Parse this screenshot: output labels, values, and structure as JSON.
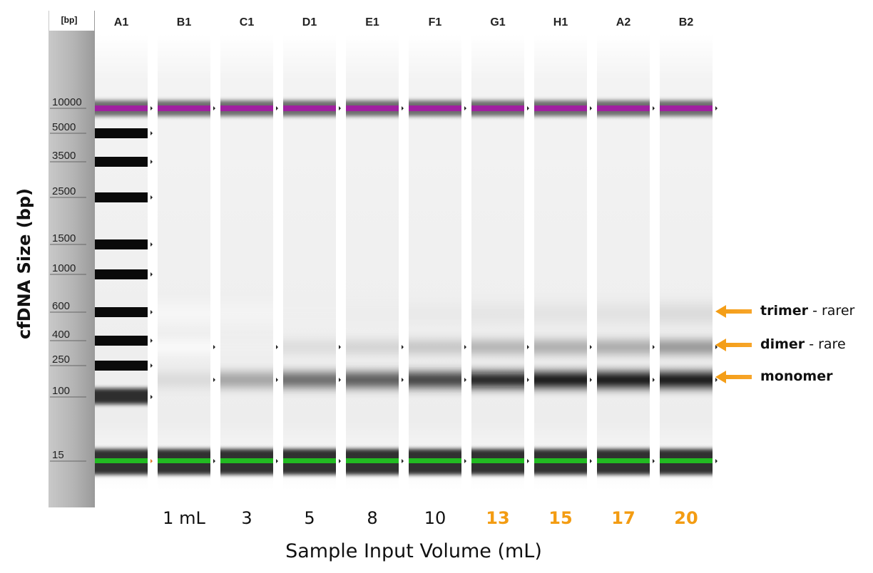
{
  "ladder": {
    "unit": "[bp]",
    "marks": [
      {
        "label": "10000",
        "bp": 10000
      },
      {
        "label": "5000",
        "bp": 5000
      },
      {
        "label": "3500",
        "bp": 3500
      },
      {
        "label": "2500",
        "bp": 2500
      },
      {
        "label": "1500",
        "bp": 1500
      },
      {
        "label": "1000",
        "bp": 1000
      },
      {
        "label": "600",
        "bp": 600
      },
      {
        "label": "400",
        "bp": 400
      },
      {
        "label": "250",
        "bp": 250
      },
      {
        "label": "100",
        "bp": 100
      },
      {
        "label": "15",
        "bp": 15
      }
    ]
  },
  "lanes": [
    {
      "id": "A1",
      "volume": "",
      "highlight": false,
      "mono": 0,
      "dimer": 0,
      "trimer": 0
    },
    {
      "id": "B1",
      "volume": "1 mL",
      "highlight": false,
      "mono": 0.15,
      "dimer": 0.02,
      "trimer": 0.01
    },
    {
      "id": "C1",
      "volume": "3",
      "highlight": false,
      "mono": 0.38,
      "dimer": 0.06,
      "trimer": 0.03
    },
    {
      "id": "D1",
      "volume": "5",
      "highlight": false,
      "mono": 0.62,
      "dimer": 0.14,
      "trimer": 0.06
    },
    {
      "id": "E1",
      "volume": "8",
      "highlight": false,
      "mono": 0.7,
      "dimer": 0.18,
      "trimer": 0.08
    },
    {
      "id": "F1",
      "volume": "10",
      "highlight": false,
      "mono": 0.8,
      "dimer": 0.24,
      "trimer": 0.1
    },
    {
      "id": "G1",
      "volume": "13",
      "highlight": true,
      "mono": 0.96,
      "dimer": 0.32,
      "trimer": 0.13
    },
    {
      "id": "H1",
      "volume": "15",
      "highlight": true,
      "mono": 1.0,
      "dimer": 0.35,
      "trimer": 0.14
    },
    {
      "id": "A2",
      "volume": "17",
      "highlight": true,
      "mono": 1.0,
      "dimer": 0.36,
      "trimer": 0.15
    },
    {
      "id": "B2",
      "volume": "20",
      "highlight": true,
      "mono": 1.0,
      "dimer": 0.45,
      "trimer": 0.2
    }
  ],
  "axes": {
    "ylabel": "cfDNA Size (bp)",
    "xlabel": "Sample Input Volume (mL)"
  },
  "annotations": {
    "trimer": {
      "name": "trimer",
      "note": " - rarer"
    },
    "dimer": {
      "name": "dimer",
      "note": " - rare"
    },
    "monomer": {
      "name": "monomer",
      "note": ""
    }
  },
  "colors": {
    "upper_marker": "#a020a0",
    "lower_marker": "#22bb22",
    "arrow": "#f39c12",
    "highlight_volume": "#f39c12",
    "ladder_strip": "#b3b3b3"
  }
}
